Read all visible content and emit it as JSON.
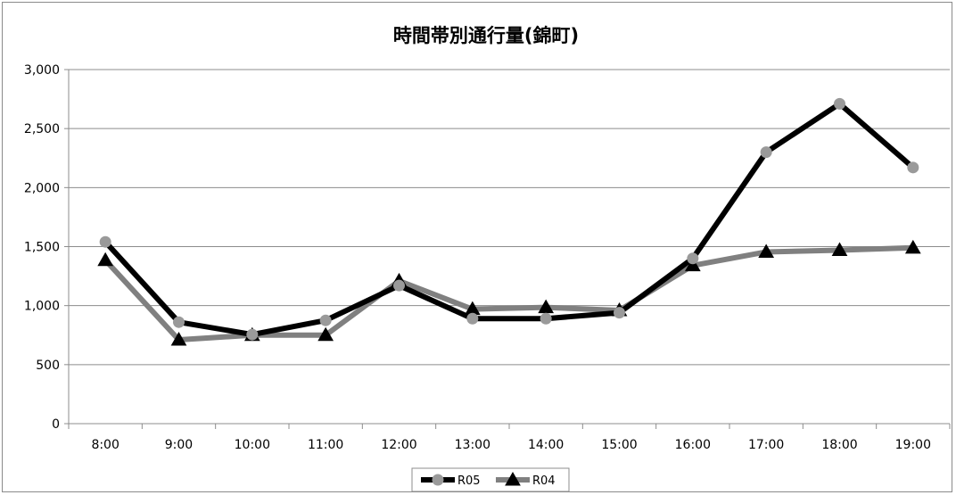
{
  "chart_data": {
    "type": "line",
    "title": "時間帯別通行量(錦町)",
    "xlabel": "",
    "ylabel": "",
    "categories": [
      "8:00",
      "9:00",
      "10:00",
      "11:00",
      "12:00",
      "13:00",
      "14:00",
      "15:00",
      "16:00",
      "17:00",
      "18:00",
      "19:00"
    ],
    "ylim": [
      0,
      3000
    ],
    "yticks": [
      0,
      500,
      1000,
      1500,
      2000,
      2500,
      3000
    ],
    "ytick_labels": [
      "0",
      "500",
      "1,000",
      "1,500",
      "2,000",
      "2,500",
      "3,000"
    ],
    "grid": true,
    "legend_position": "bottom",
    "series": [
      {
        "name": "R05",
        "marker": "circle",
        "line_color": "#000000",
        "marker_color": "#9a9a9a",
        "values": [
          1540,
          860,
          755,
          875,
          1170,
          890,
          890,
          940,
          1400,
          2300,
          2710,
          2170
        ]
      },
      {
        "name": "R04",
        "marker": "triangle",
        "line_color": "#808080",
        "marker_color": "#000000",
        "values": [
          1385,
          710,
          750,
          750,
          1210,
          970,
          985,
          960,
          1340,
          1455,
          1470,
          1490
        ]
      }
    ]
  }
}
